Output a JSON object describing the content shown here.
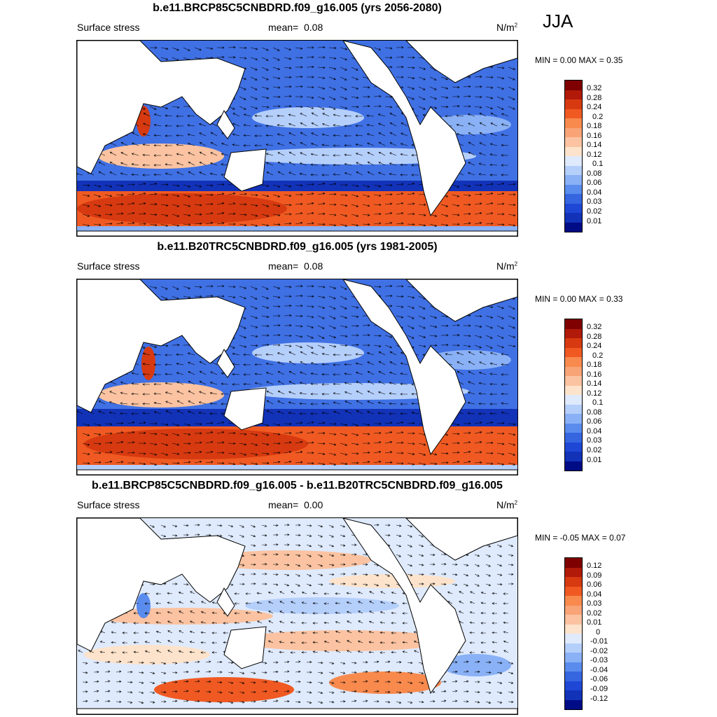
{
  "season": "JJA",
  "panels": [
    {
      "id": "future",
      "title": "b.e11.BRCP85C5CNBDRD.f09_g16.005 (yrs 2056-2080)",
      "variable": "Surface stress",
      "mean_label": "mean=",
      "mean_value": "0.08",
      "units": "N/m",
      "units_sup": "2",
      "min_label": "MIN =",
      "min_value": "0.00",
      "max_label": "MAX =",
      "max_value": "0.35",
      "colorbar_ticks": [
        "0.32",
        "0.28",
        "0.24",
        "0.2",
        "0.18",
        "0.16",
        "0.14",
        "0.12",
        "0.1",
        "0.08",
        "0.06",
        "0.04",
        "0.03",
        "0.02",
        "0.01"
      ],
      "colorbar_colors": [
        "#7f0000",
        "#b11a08",
        "#d73a10",
        "#f05a22",
        "#f88a4e",
        "#f9a477",
        "#fbc3a1",
        "#fde3cb",
        "#dfeafd",
        "#b5cffb",
        "#8ab1f6",
        "#5a8cee",
        "#3566e0",
        "#1f47d6",
        "#1232b8",
        "#000c86"
      ]
    },
    {
      "id": "historical",
      "title": "b.e11.B20TRC5CNBDRD.f09_g16.005 (yrs 1981-2005)",
      "variable": "Surface stress",
      "mean_label": "mean=",
      "mean_value": "0.08",
      "units": "N/m",
      "units_sup": "2",
      "min_label": "MIN =",
      "min_value": "0.00",
      "max_label": "MAX =",
      "max_value": "0.33",
      "colorbar_ticks": [
        "0.32",
        "0.28",
        "0.24",
        "0.2",
        "0.18",
        "0.16",
        "0.14",
        "0.12",
        "0.1",
        "0.08",
        "0.06",
        "0.04",
        "0.03",
        "0.02",
        "0.01"
      ],
      "colorbar_colors": [
        "#7f0000",
        "#b11a08",
        "#d73a10",
        "#f05a22",
        "#f88a4e",
        "#f9a477",
        "#fbc3a1",
        "#fde3cb",
        "#dfeafd",
        "#b5cffb",
        "#8ab1f6",
        "#5a8cee",
        "#3566e0",
        "#1f47d6",
        "#1232b8",
        "#000c86"
      ]
    },
    {
      "id": "difference",
      "title": "b.e11.BRCP85C5CNBDRD.f09_g16.005 - b.e11.B20TRC5CNBDRD.f09_g16.005",
      "variable": "Surface stress",
      "mean_label": "mean=",
      "mean_value": "0.00",
      "units": "N/m",
      "units_sup": "2",
      "min_label": "MIN =",
      "min_value": "-0.05",
      "max_label": "MAX =",
      "max_value": "0.07",
      "colorbar_ticks": [
        "0.12",
        "0.09",
        "0.06",
        "0.04",
        "0.03",
        "0.02",
        "0.01",
        "0",
        "-0.01",
        "-0.02",
        "-0.03",
        "-0.04",
        "-0.06",
        "-0.09",
        "-0.12"
      ],
      "colorbar_colors": [
        "#7f0000",
        "#b11a08",
        "#d73a10",
        "#f05a22",
        "#f88a4e",
        "#f9a477",
        "#fbc3a1",
        "#fde3cb",
        "#dfeafd",
        "#b5cffb",
        "#8ab1f6",
        "#5a8cee",
        "#3566e0",
        "#1f47d6",
        "#1232b8",
        "#000c86"
      ]
    }
  ],
  "colors": {
    "ocean_strong_blue": "#1f47d6",
    "ocean_mid_blue": "#5a8cee",
    "ocean_light_blue": "#b5cffb",
    "southern_red": "#d73a10",
    "land": "#ffffff",
    "coast": "#000000"
  }
}
